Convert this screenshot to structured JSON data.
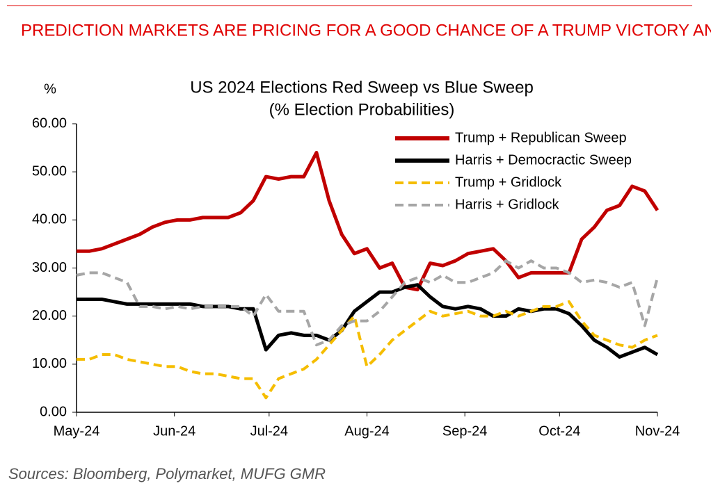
{
  "chart_data": {
    "type": "line",
    "headline": "PREDICTION MARKETS ARE PRICING FOR A GOOD CHANCE OF A TRUMP VICTORY AND RED SWEEP, ALTHOUGH THIS HAS COME OFF SLIGHTLY",
    "title": "US 2024 Elections Red Sweep vs Blue Sweep",
    "subtitle": "(% Election Probabilities)",
    "ylabel": "%",
    "source": "Sources:  Bloomberg, Polymarket, MUFG GMR",
    "x": [
      0,
      4,
      8,
      12,
      16,
      20,
      24,
      28,
      32,
      36,
      40,
      44,
      48,
      52,
      56,
      60,
      64,
      68,
      72,
      76,
      80,
      84,
      88,
      92,
      96,
      100,
      104,
      108,
      112,
      116,
      120,
      124,
      128,
      132,
      136,
      140,
      144,
      148,
      152,
      156,
      160,
      164,
      168,
      172,
      176,
      180,
      184
    ],
    "xlim": [
      0,
      184
    ],
    "xticks": [
      {
        "value": 0,
        "label": "May-24"
      },
      {
        "value": 31,
        "label": "Jun-24"
      },
      {
        "value": 61,
        "label": "Jul-24"
      },
      {
        "value": 92,
        "label": "Aug-24"
      },
      {
        "value": 123,
        "label": "Sep-24"
      },
      {
        "value": 153,
        "label": "Oct-24"
      },
      {
        "value": 184,
        "label": "Nov-24"
      }
    ],
    "ylim": [
      0,
      60
    ],
    "yticks": [
      {
        "value": 0,
        "label": "0.00"
      },
      {
        "value": 10,
        "label": "10.00"
      },
      {
        "value": 20,
        "label": "20.00"
      },
      {
        "value": 30,
        "label": "30.00"
      },
      {
        "value": 40,
        "label": "40.00"
      },
      {
        "value": 50,
        "label": "50.00"
      },
      {
        "value": 60,
        "label": "60.00"
      }
    ],
    "legend": "upper right",
    "series": [
      {
        "name": "Trump + Republican Sweep",
        "color": "#c00000",
        "dash": false,
        "values": [
          33.5,
          33.5,
          34,
          35,
          36,
          37,
          38.5,
          39.5,
          40,
          40,
          40.5,
          40.5,
          40.5,
          41.5,
          44,
          49,
          48.5,
          49,
          49,
          54,
          44,
          37,
          33,
          34,
          30,
          31,
          26,
          25.5,
          31,
          30.5,
          31.5,
          33,
          33.5,
          34,
          31.5,
          28,
          29,
          29,
          29,
          29,
          36,
          38.5,
          42,
          43,
          47,
          46,
          42
        ]
      },
      {
        "name": "Harris + Democractic Sweep",
        "color": "#000000",
        "dash": false,
        "values": [
          23.5,
          23.5,
          23.5,
          23,
          22.5,
          22.5,
          22.5,
          22.5,
          22.5,
          22.5,
          22,
          22,
          22,
          21.5,
          21.5,
          13,
          16,
          16.5,
          16,
          16,
          15,
          17,
          21,
          23,
          25,
          25,
          26,
          26.5,
          24,
          22,
          21.5,
          22,
          21.5,
          20,
          20,
          21.5,
          21,
          21.5,
          21.5,
          20.5,
          18,
          15,
          13.5,
          11.5,
          12.5,
          13.5,
          12
        ]
      },
      {
        "name": "Trump + Gridlock",
        "color": "#f5bd00",
        "dash": true,
        "values": [
          11,
          11,
          12,
          12,
          11,
          10.5,
          10,
          9.5,
          9.5,
          8.5,
          8,
          8,
          7.5,
          7,
          7,
          3,
          7,
          8,
          9,
          11,
          14,
          17,
          20,
          9.5,
          12,
          15,
          17,
          19,
          21,
          20,
          20.5,
          21,
          20,
          20,
          21,
          20,
          21,
          22,
          22,
          23,
          19,
          16,
          15,
          14,
          13.5,
          15,
          16
        ]
      },
      {
        "name": "Harris + Gridlock",
        "color": "#a6a6a6",
        "dash": true,
        "values": [
          28.5,
          29,
          29,
          28,
          27,
          22,
          22,
          21.5,
          22,
          21.5,
          22,
          22,
          22,
          22,
          20,
          24.5,
          21,
          21,
          21,
          14,
          15,
          18,
          19,
          19,
          21,
          24,
          27,
          28,
          27,
          28.5,
          27,
          27,
          28,
          29,
          31.5,
          30,
          31.5,
          30,
          30,
          29,
          27,
          27.5,
          27,
          26,
          27,
          18,
          28
        ]
      }
    ]
  }
}
